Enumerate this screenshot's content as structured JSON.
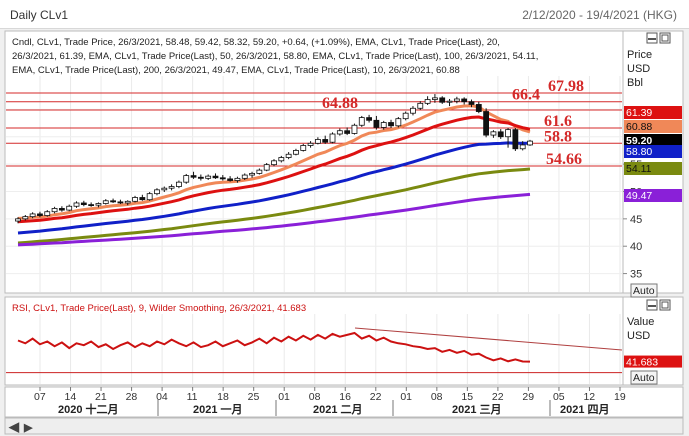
{
  "window": {
    "title": "Daily CLv1",
    "date_range": "2/12/2020 - 19/4/2021 (HKG)"
  },
  "upper_panel": {
    "legend_lines": [
      "Cndl, CLv1, Trade Price, 26/3/2021, 58.48, 59.42, 58.32, 59.20, +0.64, (+1.09%), EMA, CLv1, Trade Price(Last),  20,",
      "26/3/2021, 61.39, EMA, CLv1, Trade Price(Last),  50, 26/3/2021, 58.80, EMA, CLv1, Trade Price(Last),  100, 26/3/2021, 54.11,",
      "EMA, CLv1, Trade Price(Last),  200, 26/3/2021, 49.47, EMA, CLv1, Trade Price(Last),  10, 26/3/2021, 60.88"
    ],
    "axis_title": [
      "Price",
      "USD",
      "Bbl"
    ],
    "auto_label": "Auto"
  },
  "lower_panel": {
    "legend": "RSI, CLv1, Trade Price(Last),  9, Wilder Smoothing, 26/3/2021, 41.683",
    "axis_title": [
      "Value",
      "USD"
    ],
    "auto_label": "Auto"
  },
  "x_axis": {
    "day_ticks": [
      "07",
      "14",
      "21",
      "28",
      "04",
      "11",
      "18",
      "25",
      "01",
      "08",
      "16",
      "22",
      "01",
      "08",
      "15",
      "22",
      "29",
      "05",
      "12",
      "19"
    ],
    "month_labels": [
      "2020 十二月",
      "2021 一月",
      "2021 二月",
      "2021 三月",
      "2021 四月"
    ]
  },
  "chart_data": [
    {
      "type": "candlestick",
      "ylim": [
        32,
        70
      ],
      "y_ticks": [
        35,
        40,
        45,
        50,
        55,
        60,
        65
      ],
      "grid": true,
      "last_candle": {
        "date": "26/3/2021",
        "open": 58.48,
        "high": 59.42,
        "low": 58.32,
        "close": 59.2,
        "change": "+0.64",
        "change_pct": "(+1.09%)"
      },
      "horizontal_levels": [
        67.98,
        66.4,
        64.88,
        61.6,
        58.8,
        54.66
      ],
      "level_labels": [
        "67.98",
        "66.4",
        "64.88",
        "61.6",
        "58.8",
        "54.66"
      ],
      "value_tags": [
        {
          "text": "61.39",
          "value": 61.39,
          "color": "#dd1111"
        },
        {
          "text": "60.88",
          "value": 60.88,
          "color": "#f08858"
        },
        {
          "text": "59.20",
          "value": 59.2,
          "color": "#000000"
        },
        {
          "text": "58.80",
          "value": 58.8,
          "color": "#1020c8"
        },
        {
          "text": "54.11",
          "value": 54.11,
          "color": "#7a8a10"
        },
        {
          "text": "49.47",
          "value": 49.47,
          "color": "#8a20d8"
        }
      ],
      "candles": [
        [
          44.6,
          45.3,
          44.2,
          45.0
        ],
        [
          45.0,
          45.7,
          44.7,
          45.4
        ],
        [
          45.4,
          46.2,
          45.1,
          45.9
        ],
        [
          45.9,
          46.3,
          45.3,
          45.6
        ],
        [
          45.6,
          46.6,
          45.4,
          46.3
        ],
        [
          46.3,
          47.2,
          46.0,
          46.9
        ],
        [
          46.9,
          47.3,
          46.3,
          46.6
        ],
        [
          46.6,
          47.6,
          46.4,
          47.3
        ],
        [
          47.3,
          48.2,
          47.0,
          47.9
        ],
        [
          47.9,
          48.3,
          47.3,
          47.6
        ],
        [
          47.6,
          48.0,
          47.2,
          47.5
        ],
        [
          47.5,
          48.0,
          47.1,
          47.8
        ],
        [
          47.8,
          48.6,
          47.6,
          48.3
        ],
        [
          48.3,
          48.7,
          47.9,
          48.1
        ],
        [
          48.1,
          48.5,
          47.7,
          47.9
        ],
        [
          47.9,
          48.4,
          47.5,
          48.2
        ],
        [
          48.2,
          49.2,
          48.0,
          48.9
        ],
        [
          48.9,
          49.4,
          48.3,
          48.5
        ],
        [
          48.5,
          49.9,
          48.3,
          49.6
        ],
        [
          49.6,
          50.6,
          49.3,
          50.3
        ],
        [
          50.3,
          50.9,
          49.9,
          50.6
        ],
        [
          50.6,
          51.3,
          50.2,
          50.9
        ],
        [
          50.9,
          52.0,
          50.6,
          51.7
        ],
        [
          51.7,
          53.2,
          51.4,
          52.9
        ],
        [
          52.9,
          53.6,
          52.3,
          52.6
        ],
        [
          52.6,
          53.1,
          52.0,
          52.4
        ],
        [
          52.4,
          53.1,
          52.1,
          52.8
        ],
        [
          52.8,
          53.3,
          52.3,
          52.5
        ],
        [
          52.5,
          53.0,
          52.0,
          52.3
        ],
        [
          52.3,
          52.8,
          51.8,
          52.0
        ],
        [
          52.0,
          52.7,
          51.6,
          52.4
        ],
        [
          52.4,
          53.3,
          52.1,
          53.0
        ],
        [
          53.0,
          53.6,
          52.5,
          53.3
        ],
        [
          53.3,
          54.2,
          53.1,
          53.9
        ],
        [
          53.9,
          55.2,
          53.7,
          54.9
        ],
        [
          54.9,
          55.9,
          54.6,
          55.6
        ],
        [
          55.6,
          56.5,
          55.3,
          56.2
        ],
        [
          56.2,
          57.2,
          55.9,
          56.8
        ],
        [
          56.8,
          57.8,
          56.6,
          57.5
        ],
        [
          57.5,
          58.7,
          57.3,
          58.4
        ],
        [
          58.4,
          59.2,
          58.0,
          58.8
        ],
        [
          58.8,
          59.9,
          58.6,
          59.5
        ],
        [
          59.5,
          60.2,
          58.7,
          59.0
        ],
        [
          59.0,
          60.8,
          58.8,
          60.5
        ],
        [
          60.5,
          61.5,
          60.2,
          61.1
        ],
        [
          61.1,
          61.7,
          60.3,
          60.6
        ],
        [
          60.6,
          62.4,
          60.4,
          62.1
        ],
        [
          62.1,
          63.8,
          61.8,
          63.5
        ],
        [
          63.5,
          64.0,
          62.6,
          63.0
        ],
        [
          63.0,
          63.8,
          61.3,
          61.7
        ],
        [
          61.7,
          62.9,
          61.3,
          62.6
        ],
        [
          62.6,
          63.1,
          61.6,
          62.0
        ],
        [
          62.0,
          63.6,
          61.7,
          63.3
        ],
        [
          63.3,
          64.6,
          63.0,
          64.3
        ],
        [
          64.3,
          65.6,
          63.9,
          65.2
        ],
        [
          65.2,
          66.5,
          64.9,
          66.1
        ],
        [
          66.1,
          67.4,
          65.8,
          66.8
        ],
        [
          66.8,
          67.8,
          66.2,
          67.1
        ],
        [
          67.1,
          67.4,
          66.0,
          66.3
        ],
        [
          66.3,
          66.9,
          65.6,
          66.5
        ],
        [
          66.5,
          67.3,
          66.1,
          66.9
        ],
        [
          66.9,
          67.2,
          65.9,
          66.4
        ],
        [
          66.4,
          66.8,
          65.4,
          65.9
        ],
        [
          65.9,
          66.4,
          64.3,
          64.6
        ],
        [
          64.6,
          65.2,
          59.9,
          60.3
        ],
        [
          60.3,
          61.2,
          59.8,
          60.9
        ],
        [
          60.9,
          61.4,
          59.6,
          60.0
        ],
        [
          60.0,
          61.6,
          58.0,
          61.3
        ],
        [
          61.3,
          61.6,
          57.4,
          57.8
        ],
        [
          57.8,
          59.2,
          57.5,
          58.5
        ],
        [
          58.5,
          59.42,
          58.32,
          59.2
        ]
      ],
      "ema_series": [
        {
          "period": 10,
          "color": "#f08858",
          "start": 45.1,
          "end": 60.88
        },
        {
          "period": 20,
          "color": "#dd1111",
          "start": 44.4,
          "end": 61.39
        },
        {
          "period": 50,
          "color": "#1020c8",
          "start": 42.3,
          "end": 58.8
        },
        {
          "period": 100,
          "color": "#7a8a10",
          "start": 40.5,
          "end": 54.11
        },
        {
          "period": 200,
          "color": "#8a20d8",
          "start": 40.2,
          "end": 49.47
        }
      ]
    },
    {
      "type": "line",
      "name": "RSI 9",
      "last_value": 41.683,
      "value_tag": "41.683",
      "ylim": [
        20,
        90
      ],
      "reference_line": 30,
      "values": [
        64,
        61,
        66,
        60,
        63,
        58,
        62,
        56,
        61,
        59,
        63,
        57,
        60,
        55,
        59,
        62,
        57,
        61,
        58,
        63,
        60,
        65,
        61,
        58,
        62,
        57,
        59,
        63,
        58,
        61,
        64,
        59,
        62,
        66,
        61,
        67,
        63,
        68,
        64,
        69,
        65,
        70,
        66,
        71,
        68,
        70,
        72,
        66,
        69,
        64,
        67,
        63,
        61,
        60,
        58,
        57,
        55,
        56,
        52,
        54,
        51,
        53,
        49,
        50,
        46,
        43,
        45,
        42,
        44,
        41.7,
        41.683
      ]
    }
  ]
}
